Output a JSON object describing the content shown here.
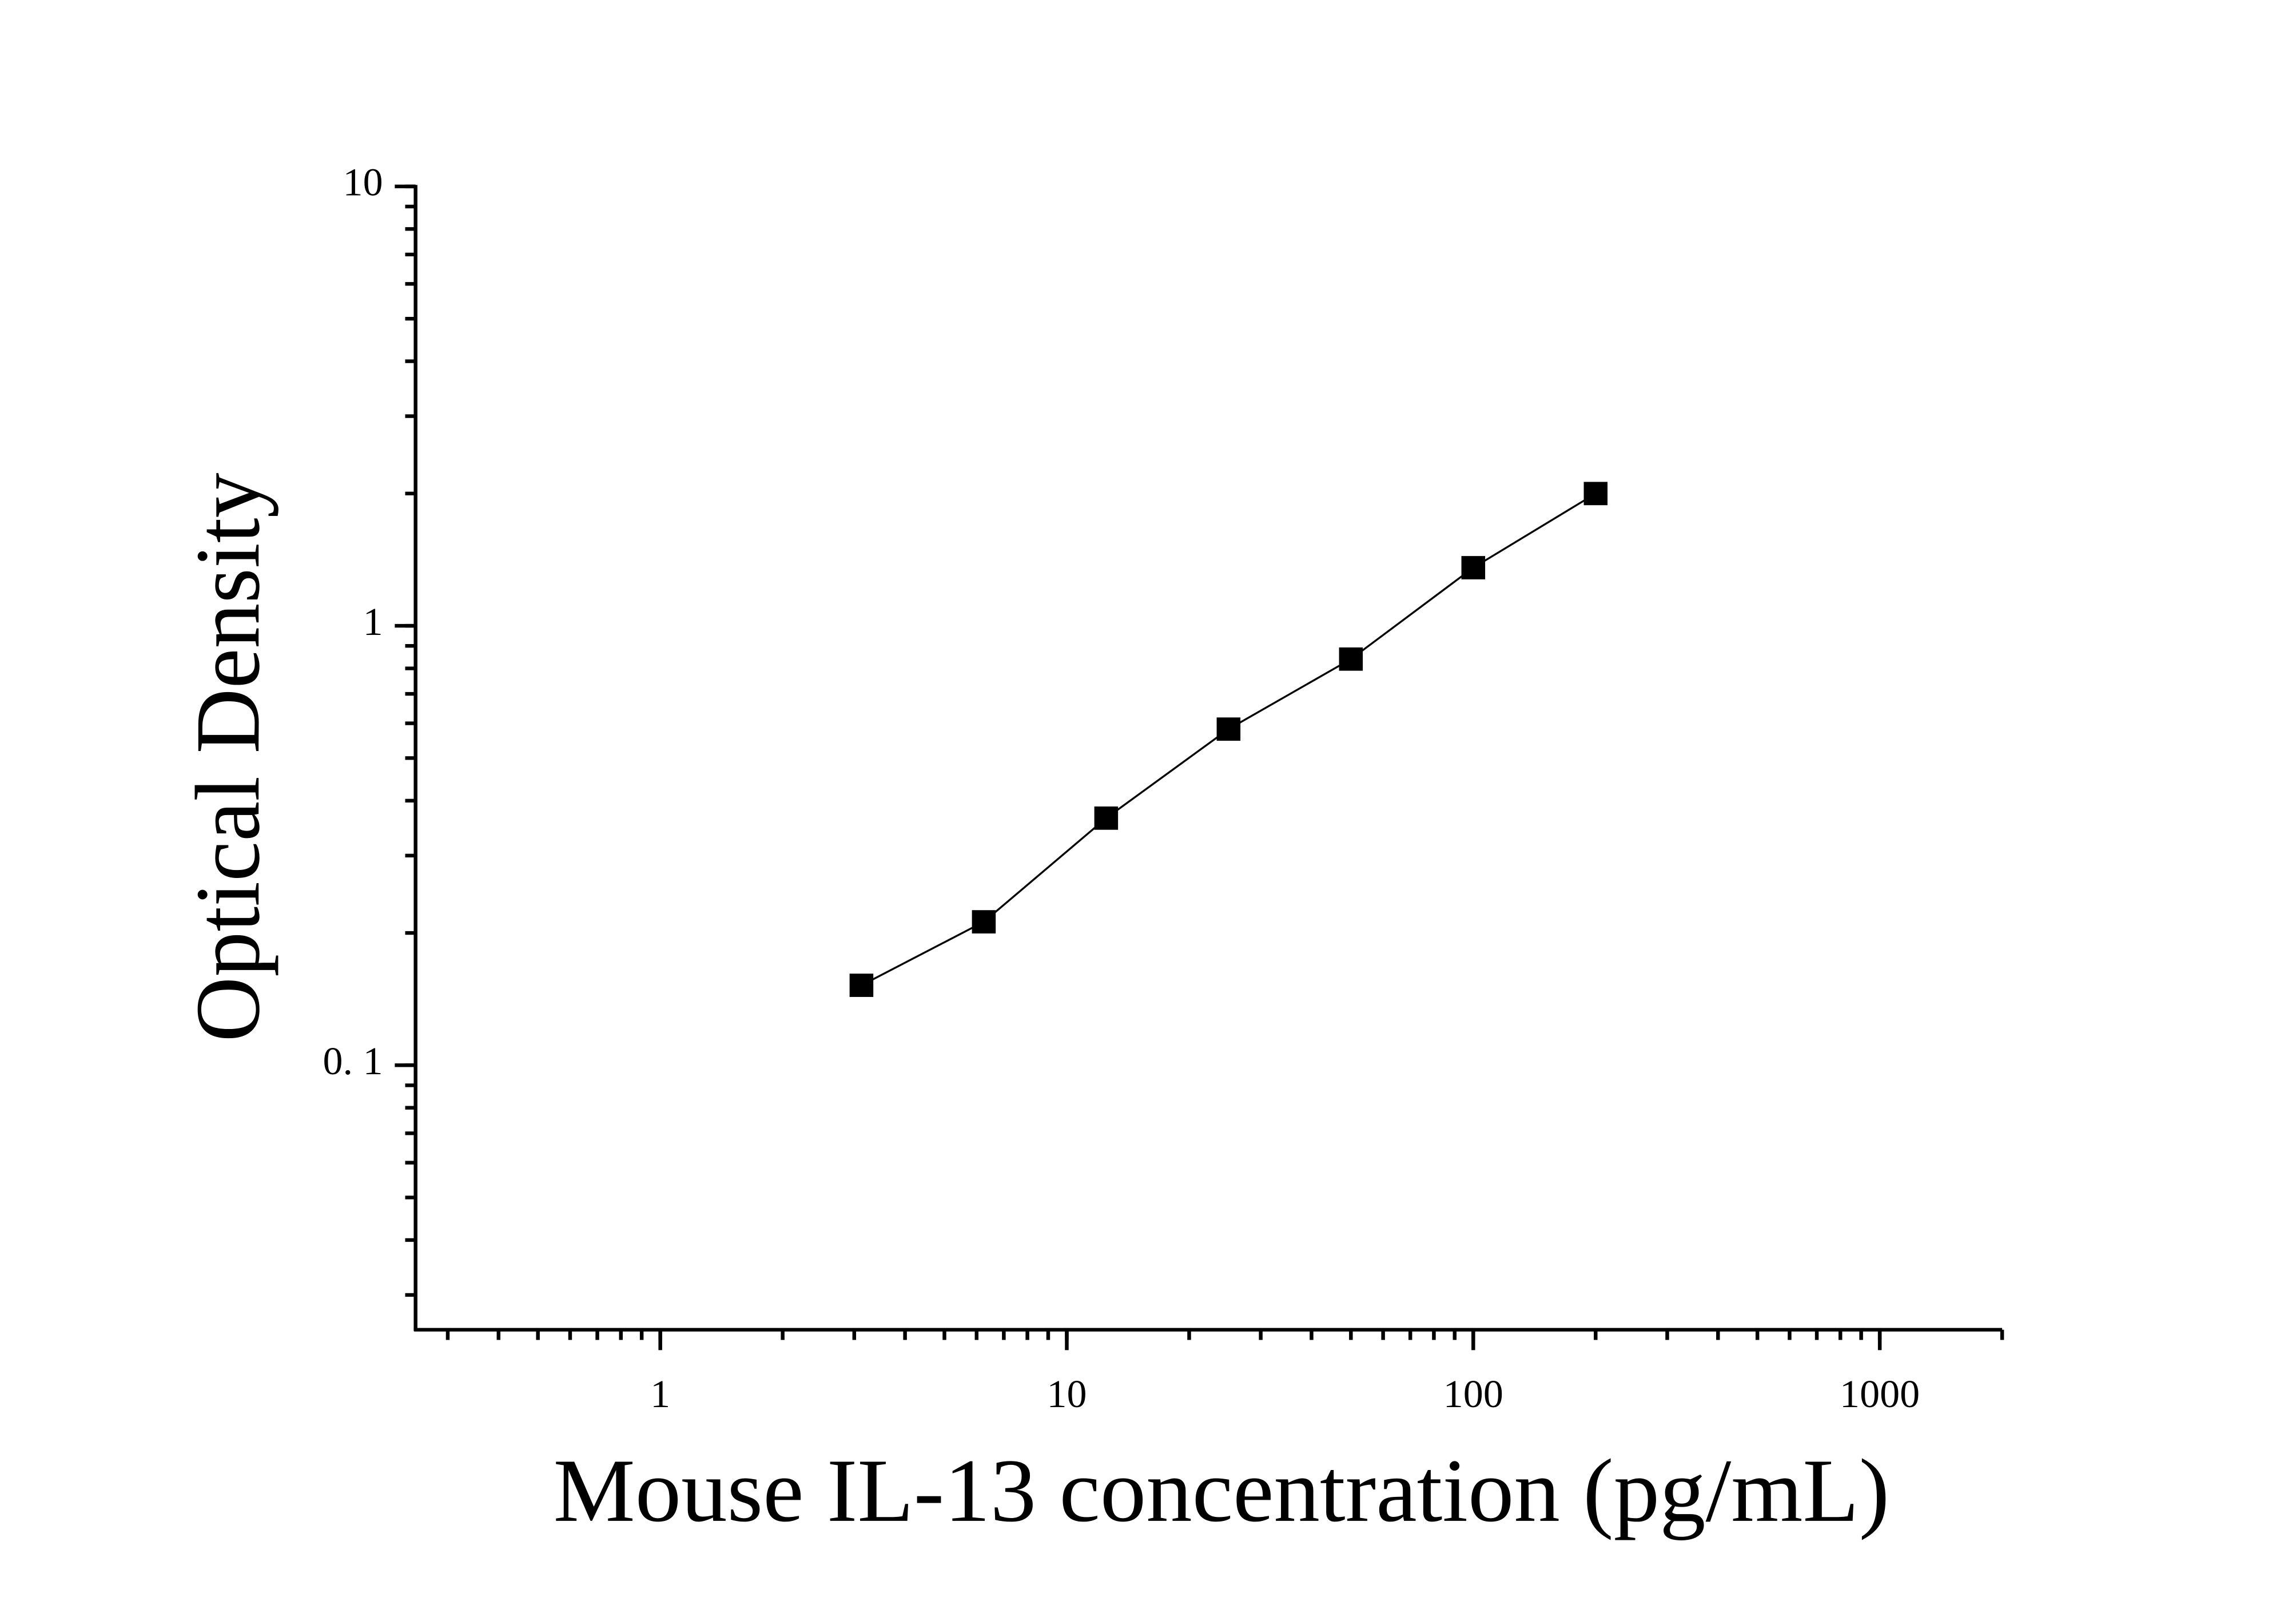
{
  "chart_data": {
    "type": "scatter",
    "x_label": "Mouse IL-13 concentration (pg/mL)",
    "y_label": "Optical Density",
    "x": [
      3.125,
      6.25,
      12.5,
      25,
      50,
      100,
      200
    ],
    "values": [
      0.152,
      0.212,
      0.365,
      0.582,
      0.84,
      1.356,
      2.0
    ],
    "color": "#000000",
    "xscale": "log",
    "yscale": "log",
    "xlim": [
      0.25,
      2000
    ],
    "ylim": [
      0.025,
      10
    ],
    "xticks": [
      1,
      10,
      100,
      1000
    ],
    "yticks": [
      10,
      1,
      {
        "value": 0.1,
        "label": "0. 1"
      }
    ],
    "minor_ticks": true,
    "connect": true
  }
}
